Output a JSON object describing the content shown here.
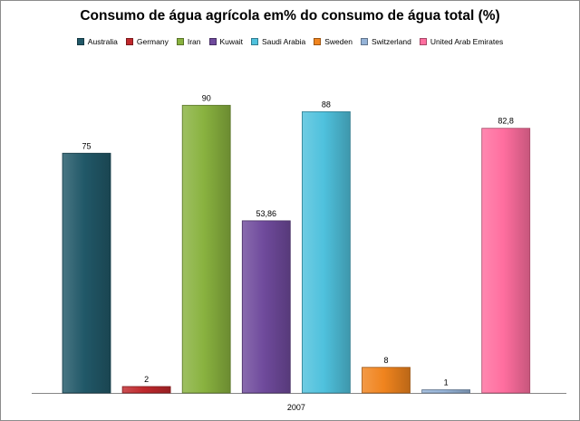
{
  "chart_data": {
    "type": "bar",
    "title": "Consumo de água agrícola em% do consumo de água total (%)",
    "categories": [
      "2007"
    ],
    "series": [
      {
        "name": "Australia",
        "value": 75,
        "label": "75",
        "color": "#215868"
      },
      {
        "name": "Germany",
        "value": 2,
        "label": "2",
        "color": "#c0282c"
      },
      {
        "name": "Iran",
        "value": 90,
        "label": "90",
        "color": "#89b23f"
      },
      {
        "name": "Kuwait",
        "value": 53.86,
        "label": "53,86",
        "color": "#6f4a9c"
      },
      {
        "name": "Saudi Arabia",
        "value": 88,
        "label": "88",
        "color": "#4fc1dd"
      },
      {
        "name": "Sweden",
        "value": 8,
        "label": "8",
        "color": "#f0841e"
      },
      {
        "name": "Switzerland",
        "value": 1,
        "label": "1",
        "color": "#95b3d7"
      },
      {
        "name": "United Arab Emirates",
        "value": 82.8,
        "label": "82,8",
        "color": "#ff6e9f"
      }
    ],
    "ylim": [
      0,
      100
    ],
    "grid": false,
    "legend_position": "top"
  }
}
